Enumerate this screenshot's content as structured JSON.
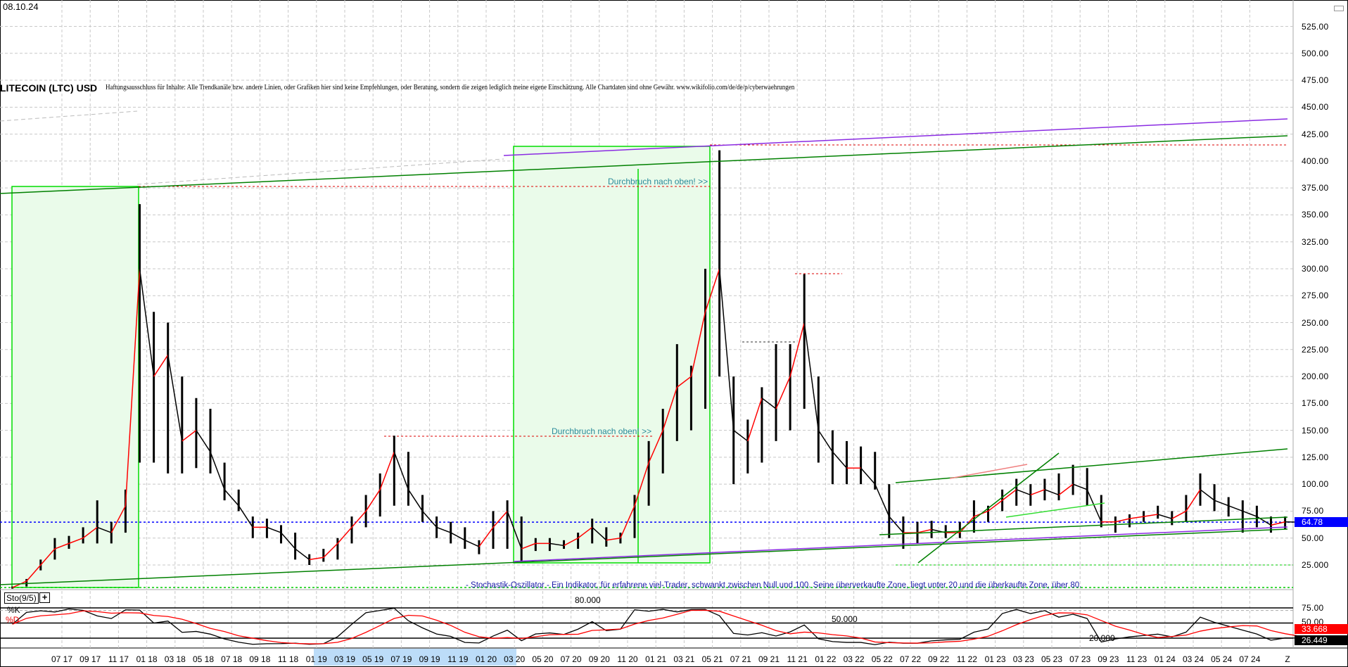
{
  "header": {
    "date": "08.10.24",
    "title": "LITECOIN (LTC) USD",
    "disclaimer": "Haftungsausschluss für Inhalte: Alle Trendkanäle bzw. andere Linien, oder Grafiken hier sind keine Empfehlungen, oder Beratung, sondern die zeigen lediglich meine eigene Einschätzung. Alle Chartdaten sind ohne Gewähr.  www.wikifolio.com/de/de/p/cyberwaehrungen"
  },
  "annotations": {
    "breakout_top": "Durchbruch nach oben! >>",
    "breakout_mid": "Durchbruch nach oben! >>",
    "stoch_note": "- Stochastik-Oszillator - Ein Indikator, für erfahrene viel-Trader, schwankt zwischen Null und 100. Seine überverkaufte Zone, liegt unter 20 und die überkaufte Zone, über 80."
  },
  "colors": {
    "up": "#ff0000",
    "down": "#000000",
    "last_price": "#0000ff",
    "trend_green": "#008000",
    "trend_purple": "#8a2be2",
    "zone_fill": "#eafbea",
    "zone_border": "#00dd00",
    "stoch_d": "#ff0000",
    "stoch_k": "#000000"
  },
  "chart_data": {
    "type": "line",
    "title": "LITECOIN (LTC) USD",
    "y_axis": {
      "ticks": [
        "525.00",
        "500.00",
        "475.00",
        "450.00",
        "425.00",
        "400.00",
        "375.00",
        "350.00",
        "325.00",
        "300.00",
        "275.00",
        "250.00",
        "225.00",
        "200.00",
        "175.00",
        "150.00",
        "125.00",
        "100.00",
        "75.00",
        "50.00",
        "25.000"
      ],
      "ylim": [
        0,
        535
      ]
    },
    "last_price": "64.78",
    "x_axis": {
      "ticks": [
        "07 17",
        "09 17",
        "11 17",
        "01 18",
        "03 18",
        "05 18",
        "07 18",
        "09 18",
        "11 18",
        "01 19",
        "03 19",
        "05 19",
        "07 19",
        "09 19",
        "11 19",
        "01 20",
        "03 20",
        "05 20",
        "07 20",
        "09 20",
        "11 20",
        "01 21",
        "03 21",
        "05 21",
        "07 21",
        "09 21",
        "11 21",
        "01 22",
        "03 22",
        "05 22",
        "07 22",
        "09 22",
        "11 22",
        "01 23",
        "03 23",
        "05 23",
        "07 23",
        "09 23",
        "11 23",
        "01 24",
        "03 24",
        "05 24",
        "07 24"
      ],
      "end_label": "Z"
    },
    "grid": true,
    "series": {
      "months": [
        "2017-03",
        "2017-04",
        "2017-05",
        "2017-06",
        "2017-07",
        "2017-08",
        "2017-09",
        "2017-10",
        "2017-11",
        "2017-12",
        "2018-01",
        "2018-02",
        "2018-03",
        "2018-04",
        "2018-05",
        "2018-06",
        "2018-07",
        "2018-08",
        "2018-09",
        "2018-10",
        "2018-11",
        "2018-12",
        "2019-01",
        "2019-02",
        "2019-03",
        "2019-04",
        "2019-05",
        "2019-06",
        "2019-07",
        "2019-08",
        "2019-09",
        "2019-10",
        "2019-11",
        "2019-12",
        "2020-01",
        "2020-02",
        "2020-03",
        "2020-04",
        "2020-05",
        "2020-06",
        "2020-07",
        "2020-08",
        "2020-09",
        "2020-10",
        "2020-11",
        "2020-12",
        "2021-01",
        "2021-02",
        "2021-03",
        "2021-04",
        "2021-05",
        "2021-06",
        "2021-07",
        "2021-08",
        "2021-09",
        "2021-10",
        "2021-11",
        "2021-12",
        "2022-01",
        "2022-02",
        "2022-03",
        "2022-04",
        "2022-05",
        "2022-06",
        "2022-07",
        "2022-08",
        "2022-09",
        "2022-10",
        "2022-11",
        "2022-12",
        "2023-01",
        "2023-02",
        "2023-03",
        "2023-04",
        "2023-05",
        "2023-06",
        "2023-07",
        "2023-08",
        "2023-09",
        "2023-10",
        "2023-11",
        "2023-12",
        "2024-01",
        "2024-02",
        "2024-03",
        "2024-04",
        "2024-05",
        "2024-06",
        "2024-07",
        "2024-08",
        "2024-09",
        "2024-10"
      ],
      "close": [
        4,
        10,
        25,
        40,
        45,
        50,
        60,
        55,
        80,
        300,
        200,
        220,
        140,
        150,
        130,
        95,
        80,
        60,
        60,
        55,
        40,
        30,
        32,
        45,
        60,
        75,
        95,
        130,
        95,
        75,
        60,
        55,
        48,
        42,
        60,
        75,
        40,
        45,
        45,
        43,
        50,
        60,
        48,
        50,
        80,
        120,
        150,
        190,
        200,
        260,
        300,
        150,
        140,
        180,
        170,
        200,
        250,
        150,
        130,
        115,
        115,
        100,
        70,
        55,
        55,
        58,
        55,
        55,
        70,
        75,
        85,
        95,
        90,
        95,
        90,
        100,
        95,
        65,
        65,
        68,
        70,
        72,
        68,
        75,
        95,
        85,
        80,
        75,
        70,
        62,
        65,
        64.78
      ],
      "high": [
        5,
        12,
        30,
        50,
        52,
        60,
        85,
        65,
        95,
        360,
        260,
        250,
        200,
        180,
        170,
        120,
        95,
        70,
        68,
        62,
        55,
        35,
        40,
        50,
        70,
        90,
        110,
        145,
        130,
        90,
        70,
        65,
        60,
        48,
        75,
        85,
        70,
        50,
        50,
        48,
        55,
        68,
        60,
        55,
        90,
        140,
        170,
        230,
        210,
        300,
        410,
        200,
        160,
        190,
        230,
        230,
        295,
        200,
        150,
        140,
        135,
        130,
        100,
        70,
        65,
        66,
        62,
        65,
        85,
        80,
        95,
        105,
        100,
        105,
        110,
        118,
        115,
        90,
        70,
        72,
        75,
        80,
        75,
        90,
        110,
        100,
        88,
        85,
        80,
        70,
        70,
        68
      ],
      "low": [
        3,
        5,
        20,
        30,
        40,
        45,
        45,
        45,
        55,
        120,
        120,
        110,
        110,
        115,
        110,
        85,
        75,
        50,
        50,
        45,
        30,
        25,
        28,
        30,
        45,
        60,
        70,
        80,
        80,
        65,
        50,
        45,
        40,
        35,
        40,
        40,
        28,
        38,
        38,
        40,
        40,
        45,
        42,
        45,
        50,
        80,
        110,
        140,
        150,
        170,
        200,
        100,
        110,
        120,
        140,
        150,
        170,
        120,
        100,
        100,
        100,
        95,
        50,
        40,
        45,
        50,
        50,
        50,
        55,
        65,
        75,
        80,
        80,
        85,
        85,
        90,
        80,
        60,
        55,
        60,
        65,
        68,
        62,
        65,
        80,
        75,
        70,
        55,
        60,
        55,
        58,
        62
      ]
    },
    "stochastic": {
      "label": "Sto(9/5)",
      "k_label": "%K",
      "d_label": "%D",
      "levels": [
        "80.000",
        "50.000",
        "20.000"
      ],
      "axis_ticks": [
        "75.00",
        "50.00"
      ],
      "k_last": "26.449",
      "d_last": "33.668"
    }
  }
}
